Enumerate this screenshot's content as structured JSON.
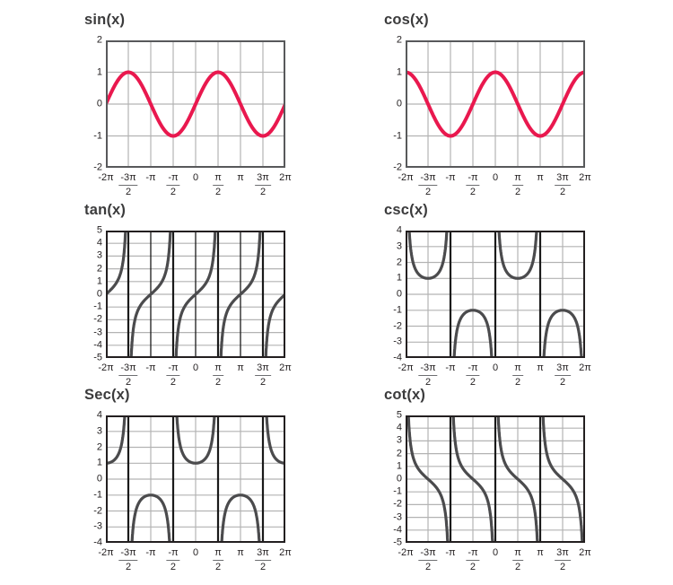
{
  "page": {
    "background": "#ffffff"
  },
  "colors": {
    "curve_red": "#e9184e",
    "curve_dark": "#4b4b4d",
    "grid": "#b3b3b3",
    "asymptote": "#1a1a1a",
    "border_light": "#58595b",
    "border_dark": "#231f20",
    "tick_text": "#231f20",
    "title_text": "#3b3b3c"
  },
  "chart_data": [
    {
      "id": "sin",
      "type": "line",
      "title": "sin(x)",
      "function": "sin",
      "color": "#e9184e",
      "stroke_width": 4,
      "xlim_pi": [
        -2,
        2
      ],
      "ylim": [
        -2,
        2
      ],
      "yticks": [
        2,
        1,
        0,
        -1,
        -2
      ],
      "xticks": [
        {
          "v": -2,
          "num": "-2π"
        },
        {
          "v": -1.5,
          "num": "-3π",
          "den": "2"
        },
        {
          "v": -1,
          "num": "-π"
        },
        {
          "v": -0.5,
          "num": "-π",
          "den": "2"
        },
        {
          "v": 0,
          "num": "0"
        },
        {
          "v": 0.5,
          "num": "π",
          "den": "2"
        },
        {
          "v": 1,
          "num": "π"
        },
        {
          "v": 1.5,
          "num": "3π",
          "den": "2"
        },
        {
          "v": 2,
          "num": "2π"
        }
      ],
      "asymptotes_pi": [],
      "vgrid": "light",
      "border": "light",
      "key_points_pi": {
        "zeros": [
          -2,
          -1,
          0,
          1,
          2
        ],
        "maxima_y1": [
          -1.5,
          0.5
        ],
        "minima_ym1": [
          -0.5,
          1.5
        ]
      }
    },
    {
      "id": "cos",
      "type": "line",
      "title": "cos(x)",
      "function": "cos",
      "color": "#e9184e",
      "stroke_width": 4,
      "xlim_pi": [
        -2,
        2
      ],
      "ylim": [
        -2,
        2
      ],
      "yticks": [
        2,
        1,
        0,
        -1,
        -2
      ],
      "xticks": [
        {
          "v": -2,
          "num": "-2π"
        },
        {
          "v": -1.5,
          "num": "-3π",
          "den": "2"
        },
        {
          "v": -1,
          "num": "-π"
        },
        {
          "v": -0.5,
          "num": "-π",
          "den": "2"
        },
        {
          "v": 0,
          "num": "0"
        },
        {
          "v": 0.5,
          "num": "π",
          "den": "2"
        },
        {
          "v": 1,
          "num": "π"
        },
        {
          "v": 1.5,
          "num": "3π",
          "den": "2"
        },
        {
          "v": 2,
          "num": "2π"
        }
      ],
      "asymptotes_pi": [],
      "vgrid": "light",
      "border": "light",
      "key_points_pi": {
        "zeros": [
          -1.5,
          -0.5,
          0.5,
          1.5
        ],
        "maxima_y1": [
          -2,
          0,
          2
        ],
        "minima_ym1": [
          -1,
          1
        ]
      }
    },
    {
      "id": "tan",
      "type": "line",
      "title": "tan(x)",
      "function": "tan",
      "color": "#4b4b4d",
      "stroke_width": 3.2,
      "xlim_pi": [
        -2,
        2
      ],
      "ylim": [
        -5,
        5
      ],
      "yticks": [
        5,
        4,
        3,
        2,
        1,
        0,
        -1,
        -2,
        -3,
        -4,
        -5
      ],
      "xticks": [
        {
          "v": -2,
          "num": "-2π"
        },
        {
          "v": -1.5,
          "num": "-3π",
          "den": "2"
        },
        {
          "v": -1,
          "num": "-π"
        },
        {
          "v": -0.5,
          "num": "-π",
          "den": "2"
        },
        {
          "v": 0,
          "num": "0"
        },
        {
          "v": 0.5,
          "num": "π",
          "den": "2"
        },
        {
          "v": 1,
          "num": "π"
        },
        {
          "v": 1.5,
          "num": "3π",
          "den": "2"
        },
        {
          "v": 2,
          "num": "2π"
        }
      ],
      "asymptotes_pi": [
        -1.5,
        -0.5,
        0.5,
        1.5
      ],
      "vgrid": "dark",
      "border": "dark",
      "key_points_pi": {
        "zeros": [
          -2,
          -1,
          0,
          1,
          2
        ]
      }
    },
    {
      "id": "csc",
      "type": "line",
      "title": "csc(x)",
      "function": "csc",
      "color": "#4b4b4d",
      "stroke_width": 3.2,
      "xlim_pi": [
        -2,
        2
      ],
      "ylim": [
        -4,
        4
      ],
      "yticks": [
        4,
        3,
        2,
        1,
        0,
        -1,
        -2,
        -3,
        -4
      ],
      "xticks": [
        {
          "v": -2,
          "num": "-2π"
        },
        {
          "v": -1.5,
          "num": "-3π",
          "den": "2"
        },
        {
          "v": -1,
          "num": "-π"
        },
        {
          "v": -0.5,
          "num": "-π",
          "den": "2"
        },
        {
          "v": 0,
          "num": "0"
        },
        {
          "v": 0.5,
          "num": "π",
          "den": "2"
        },
        {
          "v": 1,
          "num": "π"
        },
        {
          "v": 1.5,
          "num": "3π",
          "den": "2"
        },
        {
          "v": 2,
          "num": "2π"
        }
      ],
      "asymptotes_pi": [
        -1,
        0,
        1
      ],
      "vgrid": "light",
      "border": "dark",
      "key_points_pi": {
        "local_min_y1": [
          -1.5,
          0.5
        ],
        "local_max_ym1": [
          -0.5,
          1.5
        ]
      }
    },
    {
      "id": "sec",
      "type": "line",
      "title": "Sec(x)",
      "function": "sec",
      "color": "#4b4b4d",
      "stroke_width": 3.2,
      "xlim_pi": [
        -2,
        2
      ],
      "ylim": [
        -4,
        4
      ],
      "yticks": [
        4,
        3,
        2,
        1,
        0,
        -1,
        -2,
        -3,
        -4
      ],
      "xticks": [
        {
          "v": -2,
          "num": "-2π"
        },
        {
          "v": -1.5,
          "num": "-3π",
          "den": "2"
        },
        {
          "v": -1,
          "num": "-π"
        },
        {
          "v": -0.5,
          "num": "-π",
          "den": "2"
        },
        {
          "v": 0,
          "num": "0"
        },
        {
          "v": 0.5,
          "num": "π",
          "den": "2"
        },
        {
          "v": 1,
          "num": "π"
        },
        {
          "v": 1.5,
          "num": "3π",
          "den": "2"
        },
        {
          "v": 2,
          "num": "2π"
        }
      ],
      "asymptotes_pi": [
        -1.5,
        -0.5,
        0.5,
        1.5
      ],
      "vgrid": "light",
      "border": "dark",
      "key_points_pi": {
        "local_min_y1": [
          -2,
          0,
          2
        ],
        "local_max_ym1": [
          -1,
          1
        ]
      }
    },
    {
      "id": "cot",
      "type": "line",
      "title": "cot(x)",
      "function": "cot",
      "color": "#4b4b4d",
      "stroke_width": 3.2,
      "xlim_pi": [
        -2,
        2
      ],
      "ylim": [
        -5,
        5
      ],
      "yticks": [
        5,
        4,
        3,
        2,
        1,
        0,
        -1,
        -2,
        -3,
        -4,
        -5
      ],
      "xticks": [
        {
          "v": -2,
          "num": "-2π"
        },
        {
          "v": -1.5,
          "num": "-3π",
          "den": "2"
        },
        {
          "v": -1,
          "num": "-π"
        },
        {
          "v": -0.5,
          "num": "-π",
          "den": "2"
        },
        {
          "v": 0,
          "num": "0"
        },
        {
          "v": 0.5,
          "num": "π",
          "den": "2"
        },
        {
          "v": 1,
          "num": "π"
        },
        {
          "v": 1.5,
          "num": "3π",
          "den": "2"
        },
        {
          "v": 2,
          "num": "2π"
        }
      ],
      "asymptotes_pi": [
        -1,
        0,
        1
      ],
      "vgrid": "light",
      "border": "dark",
      "key_points_pi": {
        "zeros": [
          -1.5,
          -0.5,
          0.5,
          1.5
        ]
      }
    }
  ]
}
